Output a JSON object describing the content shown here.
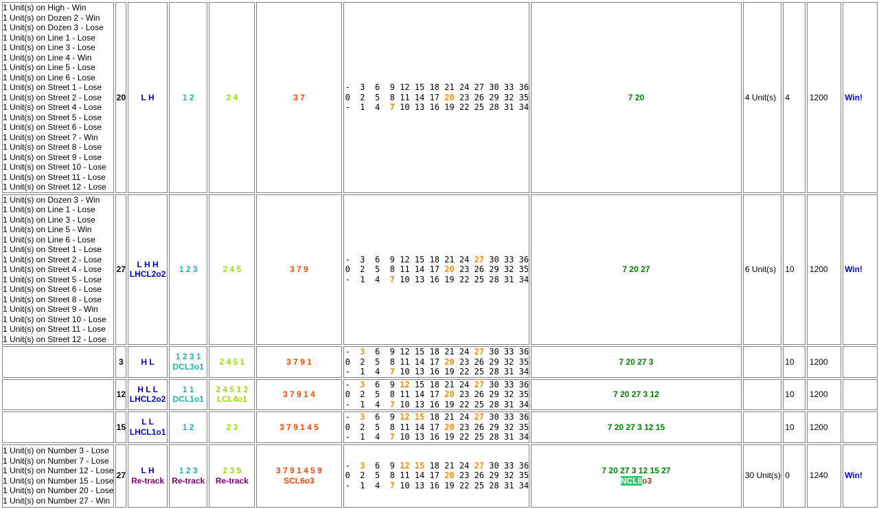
{
  "rows": [
    {
      "bets": [
        "1 Unit(s) on High - Win",
        "1 Unit(s) on Dozen 2 - Win",
        "1 Unit(s) on Dozen 3 - Lose",
        "1 Unit(s) on Line 1 - Lose",
        "1 Unit(s) on Line 3 - Lose",
        "1 Unit(s) on Line 4 - Win",
        "1 Unit(s) on Line 5 - Lose",
        "1 Unit(s) on Line 6 - Lose",
        "1 Unit(s) on Street 1 - Lose",
        "1 Unit(s) on Street 2 - Lose",
        "1 Unit(s) on Street 4 - Lose",
        "1 Unit(s) on Street 5 - Lose",
        "1 Unit(s) on Street 6 - Lose",
        "1 Unit(s) on Street 7 - Win",
        "1 Unit(s) on Street 8 - Lose",
        "1 Unit(s) on Street 9 - Lose",
        "1 Unit(s) on Street 10 - Lose",
        "1 Unit(s) on Street 11 - Lose",
        "1 Unit(s) on Street 12 - Lose"
      ],
      "number": "20",
      "hl": "L H",
      "hl_sub": "",
      "dozen": "1 2",
      "dozen_sub": "",
      "line": "2 4",
      "line_sub": "",
      "street": "3 7",
      "street_sub": "",
      "hits": [
        7,
        20
      ],
      "history": "7 20",
      "history_sub": "",
      "bet": "4 Unit(s)",
      "units": "4",
      "bank": "1200",
      "result": "Win!"
    },
    {
      "bets": [
        "1 Unit(s) on Dozen 3 - Win",
        "1 Unit(s) on Line 1 - Lose",
        "1 Unit(s) on Line 3 - Lose",
        "1 Unit(s) on Line 5 - Win",
        "1 Unit(s) on Line 6 - Lose",
        "1 Unit(s) on Street 1 - Lose",
        "1 Unit(s) on Street 2 - Lose",
        "1 Unit(s) on Street 4 - Lose",
        "1 Unit(s) on Street 5 - Lose",
        "1 Unit(s) on Street 6 - Lose",
        "1 Unit(s) on Street 8 - Lose",
        "1 Unit(s) on Street 9 - Win",
        "1 Unit(s) on Street 10 - Lose",
        "1 Unit(s) on Street 11 - Lose",
        "1 Unit(s) on Street 12 - Lose"
      ],
      "number": "27",
      "hl": "L H H",
      "hl_sub": "LHCL2o2",
      "dozen": "1 2 3",
      "dozen_sub": "",
      "line": "2 4 5",
      "line_sub": "",
      "street": "3 7 9",
      "street_sub": "",
      "hits": [
        7,
        20,
        27
      ],
      "history": "7 20 27",
      "history_sub": "",
      "bet": "6 Unit(s)",
      "units": "10",
      "bank": "1200",
      "result": "Win!"
    },
    {
      "bets": [],
      "number": "3",
      "hl": "H L",
      "hl_sub": "",
      "dozen": "1 2 3 1",
      "dozen_sub": "DCL3o1",
      "line": "2 4 5 1",
      "line_sub": "",
      "street": "3 7 9 1",
      "street_sub": "",
      "hits": [
        7,
        20,
        27,
        3
      ],
      "history": "7 20 27 3",
      "history_sub": "",
      "bet": "",
      "units": "10",
      "bank": "1200",
      "result": ""
    },
    {
      "bets": [],
      "number": "12",
      "hl": "H L L",
      "hl_sub": "LHCL2o2",
      "dozen": "1 1",
      "dozen_sub": "DCL1o1",
      "line": "2 4 5 1 2",
      "line_sub": "LCL4o1",
      "street": "3 7 9 1 4",
      "street_sub": "",
      "hits": [
        7,
        20,
        27,
        3,
        12
      ],
      "history": "7 20 27 3 12",
      "history_sub": "",
      "bet": "",
      "units": "10",
      "bank": "1200",
      "result": ""
    },
    {
      "bets": [],
      "number": "15",
      "hl": "L L",
      "hl_sub": "LHCL1o1",
      "dozen": "1 2",
      "dozen_sub": "",
      "line": "2 3",
      "line_sub": "",
      "street": "3 7 9 1 4 5",
      "street_sub": "",
      "hits": [
        7,
        20,
        27,
        3,
        12,
        15
      ],
      "history": "7 20 27 3 12 15",
      "history_sub": "",
      "bet": "",
      "units": "10",
      "bank": "1200",
      "result": ""
    },
    {
      "bets": [
        "1 Unit(s) on Number 3 - Lose",
        "1 Unit(s) on Number 7 - Lose",
        "1 Unit(s) on Number 12 - Lose",
        "1 Unit(s) on Number 15 - Lose",
        "1 Unit(s) on Number 20 - Lose",
        "1 Unit(s) on Number 27 - Win"
      ],
      "number": "27",
      "hl": "L H",
      "hl_sub": "Re-track",
      "dozen": "1 2 3",
      "dozen_sub": "Re-track",
      "line": "2 3 5",
      "line_sub": "Re-track",
      "street": "3 7 9 1 4 5 9",
      "street_sub": "SCL6o3",
      "hits": [
        7,
        20,
        27,
        3,
        12,
        15
      ],
      "history": "7 20 27 3 12 15 27",
      "history_badge": "NCL6",
      "history_badge_highlight": "NCL6",
      "history_badge_rest": "o3",
      "bet": "30 Unit(s)",
      "units": "0",
      "bank": "1240",
      "result": "Win!"
    }
  ],
  "wheel_grid": {
    "top": [
      "-",
      "3",
      "6",
      "9",
      "12",
      "15",
      "18",
      "21",
      "24",
      "27",
      "30",
      "33",
      "36"
    ],
    "middle": [
      "0",
      "2",
      "5",
      "8",
      "11",
      "14",
      "17",
      "20",
      "23",
      "26",
      "29",
      "32",
      "35"
    ],
    "bottom": [
      "-",
      "1",
      "4",
      "7",
      "10",
      "13",
      "16",
      "19",
      "22",
      "25",
      "28",
      "31",
      "34"
    ]
  },
  "colors": {
    "hl": "#0000cc",
    "dozen": "#20b2aa",
    "line": "#99e000",
    "street": "#ff4500",
    "history": "#008000",
    "hit": "#ff8c00",
    "result": "#0000ff",
    "retrack": "#800080",
    "badge": "#2ecc71"
  }
}
